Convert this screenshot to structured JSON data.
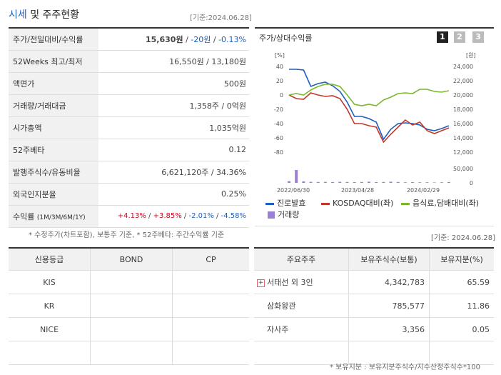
{
  "header": {
    "title_hl": "시세",
    "title_rest": " 및 주주현황",
    "base_date": "[기준:2024.06.28]"
  },
  "quote": {
    "rows": [
      {
        "label": "주가/전일대비/수익률",
        "price": "15,630원",
        "change": "-20원",
        "rate": "-0.13%"
      },
      {
        "label": "52Weeks 최고/최저",
        "value": "16,550원 / 13,180원"
      },
      {
        "label": "액면가",
        "value": "500원"
      },
      {
        "label": "거래량/거래대금",
        "value": "1,358주 / 0억원"
      },
      {
        "label": "시가총액",
        "value": "1,035억원"
      },
      {
        "label": "52주베타",
        "value": "0.12"
      },
      {
        "label": "발행주식수/유동비율",
        "value": "6,621,120주 / 34.36%"
      },
      {
        "label": "외국인지분율",
        "value": "0.25%"
      }
    ],
    "return_row": {
      "label": "수익률",
      "periods": "(1M/3M/6M/1Y)",
      "r1": "+4.13%",
      "r2": "+3.85%",
      "r3": "-2.01%",
      "r4": "-4.58%"
    },
    "note": "* 수정주가(차트포함), 보통주 기준, * 52주베타: 주간수익률 기준"
  },
  "chart": {
    "title": "주가/상대수익률",
    "buttons": [
      "1",
      "2",
      "3"
    ],
    "left_unit": "[%]",
    "right_unit": "[원]",
    "left_ticks": [
      "40",
      "20",
      "0",
      "-20",
      "-40",
      "-60",
      "-80"
    ],
    "right_ticks": [
      "24,000",
      "22,000",
      "20,000",
      "18,000",
      "16,000",
      "14,000",
      "12,000"
    ],
    "vol_ticks": [
      "50,000",
      "0"
    ],
    "x_labels": [
      "2022/06/30",
      "2023/04/28",
      "2024/02/29"
    ],
    "colors": {
      "jinro": "#1f5fbf",
      "kosdaq": "#c0392b",
      "food": "#7cb82f",
      "volume": "#9b7fd6"
    },
    "legend": {
      "jinro": "진로발효",
      "kosdaq": "KOSDAQ대비(좌)",
      "food": "음식료,담배대비(좌)",
      "volume": "거래량"
    }
  },
  "chart_data": {
    "type": "line",
    "ylim": [
      -80,
      40
    ],
    "y2lim": [
      12000,
      24000
    ],
    "series": [
      {
        "name": "진로발효",
        "values": [
          36,
          36,
          35,
          12,
          16,
          18,
          13,
          5,
          -10,
          -30,
          -30,
          -33,
          -38,
          -62,
          -48,
          -40,
          -39,
          -40,
          -42,
          -48,
          -50,
          -47,
          -43
        ]
      },
      {
        "name": "KOSDAQ대비(좌)",
        "values": [
          0,
          -5,
          -6,
          3,
          0,
          -2,
          -1,
          -5,
          -20,
          -40,
          -40,
          -43,
          -45,
          -66,
          -55,
          -45,
          -35,
          -42,
          -38,
          -50,
          -54,
          -50,
          -46
        ]
      },
      {
        "name": "음식료,담배대비(좌)",
        "values": [
          0,
          2,
          0,
          7,
          12,
          15,
          15,
          12,
          0,
          -13,
          -15,
          -13,
          -15,
          -7,
          -3,
          2,
          3,
          2,
          8,
          8,
          5,
          4,
          6
        ]
      },
      {
        "name": "거래량",
        "values": [
          6000,
          45000,
          5000,
          3500,
          3000,
          3200,
          2800,
          3500,
          3000,
          2500,
          3000,
          4000,
          2500,
          3000,
          4000,
          3000,
          2000,
          2500,
          2000,
          2000,
          1500,
          2000,
          2500
        ]
      }
    ]
  },
  "credit": {
    "headers": [
      "신용등급",
      "BOND",
      "CP"
    ],
    "rows": [
      {
        "agency": "KIS",
        "bond": "",
        "cp": ""
      },
      {
        "agency": "KR",
        "bond": "",
        "cp": ""
      },
      {
        "agency": "NICE",
        "bond": "",
        "cp": ""
      },
      {
        "agency": "",
        "bond": "",
        "cp": ""
      }
    ]
  },
  "holders": {
    "base_date": "[기준: 2024.06.28]",
    "headers": [
      "주요주주",
      "보유주식수(보통)",
      "보유지분(%)"
    ],
    "rows": [
      {
        "name": "서태선 외 3인",
        "shares": "4,342,783",
        "pct": "65.59",
        "expand": true
      },
      {
        "name": "삼화왕관",
        "shares": "785,577",
        "pct": "11.86",
        "expand": false
      },
      {
        "name": "자사주",
        "shares": "3,356",
        "pct": "0.05",
        "expand": false
      },
      {
        "name": "",
        "shares": "",
        "pct": "",
        "expand": false
      }
    ],
    "note": "* 보유지분 : 보유지분주식수/지수산정주식수*100"
  }
}
